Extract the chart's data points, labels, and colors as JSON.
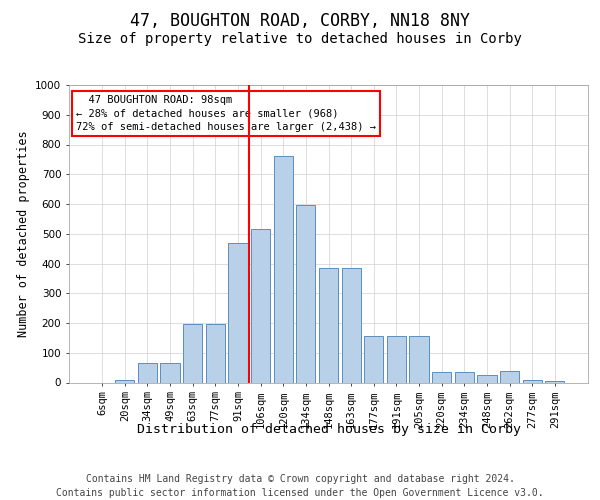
{
  "title1": "47, BOUGHTON ROAD, CORBY, NN18 8NY",
  "title2": "Size of property relative to detached houses in Corby",
  "xlabel": "Distribution of detached houses by size in Corby",
  "ylabel": "Number of detached properties",
  "footer1": "Contains HM Land Registry data © Crown copyright and database right 2024.",
  "footer2": "Contains public sector information licensed under the Open Government Licence v3.0.",
  "categories": [
    "6sqm",
    "20sqm",
    "34sqm",
    "49sqm",
    "63sqm",
    "77sqm",
    "91sqm",
    "106sqm",
    "120sqm",
    "134sqm",
    "148sqm",
    "163sqm",
    "177sqm",
    "191sqm",
    "205sqm",
    "220sqm",
    "234sqm",
    "248sqm",
    "262sqm",
    "277sqm",
    "291sqm"
  ],
  "values": [
    0,
    10,
    65,
    65,
    195,
    195,
    470,
    515,
    760,
    595,
    385,
    385,
    155,
    155,
    155,
    35,
    35,
    25,
    40,
    10,
    5
  ],
  "bar_color": "#b8d0e8",
  "bar_edge_color": "#5a8fc0",
  "vline_pos": 6.47,
  "vline_color": "red",
  "annotation_line1": "  47 BOUGHTON ROAD: 98sqm",
  "annotation_line2": "← 28% of detached houses are smaller (968)",
  "annotation_line3": "72% of semi-detached houses are larger (2,438) →",
  "ylim_max": 1000,
  "yticks": [
    0,
    100,
    200,
    300,
    400,
    500,
    600,
    700,
    800,
    900,
    1000
  ],
  "grid_color": "#d0d0d0",
  "title1_fontsize": 12,
  "title2_fontsize": 10,
  "xlabel_fontsize": 9.5,
  "ylabel_fontsize": 8.5,
  "tick_fontsize": 7.5,
  "ann_fontsize": 7.5,
  "footer_fontsize": 7
}
